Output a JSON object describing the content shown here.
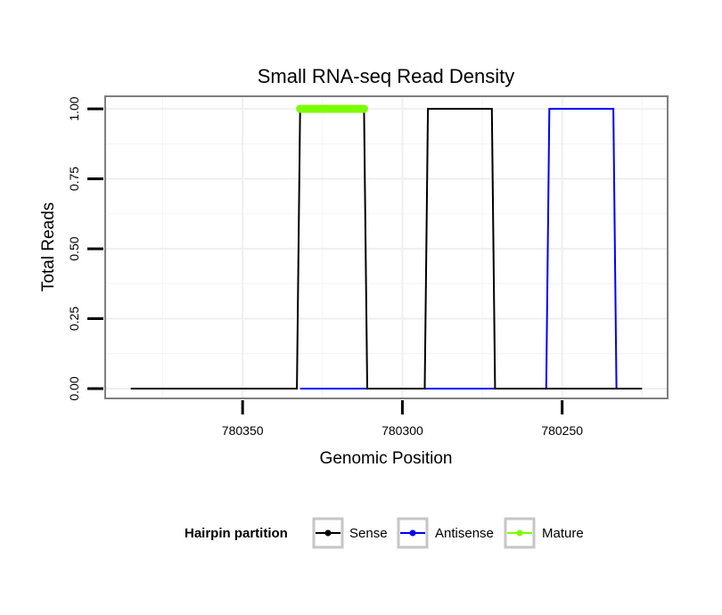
{
  "chart_data": {
    "type": "line",
    "title": "Small RNA-seq Read Density",
    "xlabel": "Genomic Position",
    "ylabel": "Total Reads",
    "x_reversed": true,
    "xlim": [
      780393,
      780217
    ],
    "ylim": [
      -0.035,
      1.045
    ],
    "x_ticks": [
      780350,
      780300,
      780250
    ],
    "x_tick_labels": [
      "780350",
      "780300",
      "780250"
    ],
    "y_ticks": [
      0,
      0.25,
      0.5,
      0.75,
      1.0
    ],
    "y_tick_labels": [
      "0.00",
      "0.25",
      "0.50",
      "0.75",
      "1.00"
    ],
    "grid": true,
    "legend": {
      "title": "Hairpin partition",
      "position": "bottom",
      "entries": [
        "Sense",
        "Antisense",
        "Mature"
      ]
    },
    "series": [
      {
        "name": "Sense",
        "color": "#000000",
        "points": [
          [
            780385,
            0
          ],
          [
            780333,
            0
          ],
          [
            780332,
            1
          ],
          [
            780312,
            1
          ],
          [
            780311,
            0
          ],
          [
            780293,
            0
          ],
          [
            780292,
            1
          ],
          [
            780272,
            1
          ],
          [
            780271,
            0
          ],
          [
            780225,
            0
          ]
        ]
      },
      {
        "name": "Antisense",
        "color": "#0000ff",
        "points": [
          [
            780332,
            0
          ],
          [
            780292,
            0
          ],
          [
            780255,
            0
          ],
          [
            780254,
            1
          ],
          [
            780234,
            1
          ],
          [
            780233,
            0
          ],
          [
            780227,
            0
          ]
        ]
      },
      {
        "name": "Mature",
        "color": "#7cfc00",
        "points": [
          [
            780332,
            1
          ],
          [
            780312,
            1
          ]
        ]
      }
    ]
  }
}
